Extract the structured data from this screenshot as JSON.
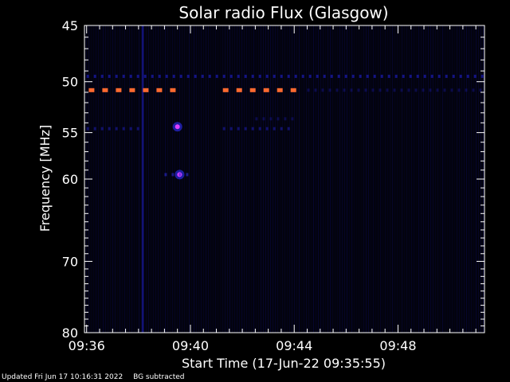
{
  "chart_data": {
    "type": "heatmap",
    "title": "Solar radio Flux (Glasgow)",
    "xlabel": "Start Time (17-Jun-22 09:35:55)",
    "ylabel": "Frequency [MHz]",
    "x_unit": "time",
    "xlim": [
      "09:35:55",
      "09:51:20"
    ],
    "ylim": [
      45,
      80
    ],
    "x_ticks": [
      "09:36",
      "09:40",
      "09:44",
      "09:48"
    ],
    "y_ticks": [
      45,
      50,
      55,
      60,
      70,
      80
    ],
    "background_color": "#03030e",
    "features": [
      {
        "kind": "time_burst",
        "time": "09:38:10",
        "freq_range": [
          45,
          80
        ],
        "color": "#1a1aa8",
        "intensity": 0.8
      },
      {
        "kind": "dotted_band",
        "freq": 49.5,
        "time_range": [
          "09:36:00",
          "09:51:15"
        ],
        "color": "#2020d0",
        "intensity": 0.6
      },
      {
        "kind": "dotted_band",
        "freq": 50.8,
        "time_range": [
          "09:36:05",
          "09:39:20"
        ],
        "color": "#ff6a30",
        "intensity": 1.0
      },
      {
        "kind": "dotted_band",
        "freq": 50.8,
        "time_range": [
          "09:41:15",
          "09:44:00"
        ],
        "color": "#ff6a30",
        "intensity": 1.0
      },
      {
        "kind": "dotted_band",
        "freq": 50.8,
        "time_range": [
          "09:44:30",
          "09:51:20"
        ],
        "color": "#1818a0",
        "intensity": 0.4
      },
      {
        "kind": "dotted_band",
        "freq": 54.6,
        "time_range": [
          "09:36:00",
          "09:38:00"
        ],
        "color": "#2020c0",
        "intensity": 0.5
      },
      {
        "kind": "dotted_band",
        "freq": 54.6,
        "time_range": [
          "09:41:15",
          "09:44:00"
        ],
        "color": "#2020c0",
        "intensity": 0.5
      },
      {
        "kind": "dotted_band",
        "freq": 53.6,
        "time_range": [
          "09:42:30",
          "09:44:00"
        ],
        "color": "#1a1aa0",
        "intensity": 0.4
      },
      {
        "kind": "spot",
        "time": "09:39:30",
        "freq": 54.4,
        "color": "#e040ff",
        "intensity": 1.0
      },
      {
        "kind": "spot",
        "time": "09:39:35",
        "freq": 59.5,
        "color": "#e040ff",
        "intensity": 1.0
      },
      {
        "kind": "dotted_band",
        "freq": 59.5,
        "time_range": [
          "09:39:00",
          "09:40:05"
        ],
        "color": "#2a2ad0",
        "intensity": 0.6
      }
    ]
  },
  "footer": {
    "updated": "Updated Fri Jun 17 10:16:31 2022",
    "note": "BG subtracted"
  }
}
